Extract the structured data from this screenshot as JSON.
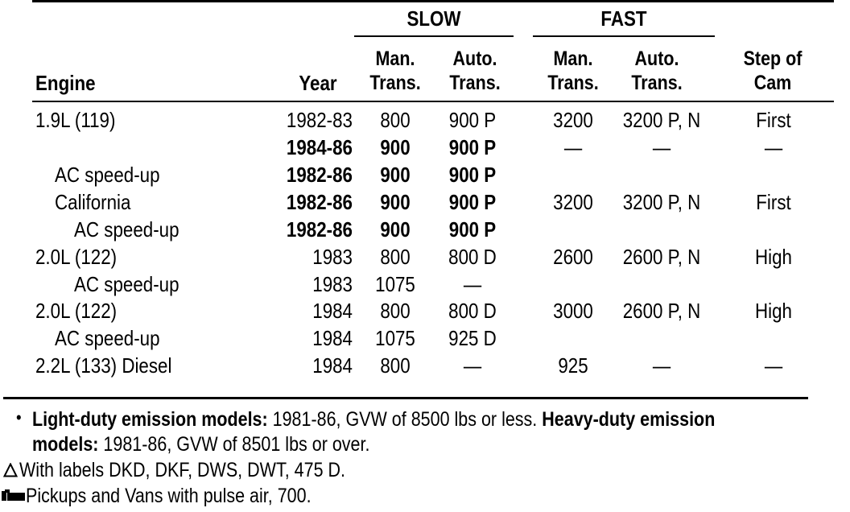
{
  "table": {
    "group_headers": {
      "slow": "SLOW",
      "fast": "FAST"
    },
    "columns": {
      "engine": "Engine",
      "year": "Year",
      "slow_man_line1": "Man.",
      "slow_man_line2": "Trans.",
      "slow_auto_line1": "Auto.",
      "slow_auto_line2": "Trans.",
      "fast_man_line1": "Man.",
      "fast_man_line2": "Trans.",
      "fast_auto_line1": "Auto.",
      "fast_auto_line2": "Trans.",
      "step_line1": "Step of",
      "step_line2": "Cam"
    },
    "rows": [
      {
        "engine": "1.9L (119)",
        "year": "1982-83",
        "slow_man": "800",
        "slow_auto": "900 P",
        "fast_man": "3200",
        "fast_auto": "3200 P, N",
        "step": "First"
      },
      {
        "engine": "",
        "year": "1984-86",
        "slow_man": "900",
        "slow_auto": "900 P",
        "fast_man": "—",
        "fast_auto": "—",
        "step": "—"
      },
      {
        "engine": "AC speed-up",
        "year": "1982-86",
        "slow_man": "900",
        "slow_auto": "900 P",
        "fast_man": "",
        "fast_auto": "",
        "step": ""
      },
      {
        "engine": "California",
        "year": "1982-86",
        "slow_man": "900",
        "slow_auto": "900 P",
        "fast_man": "3200",
        "fast_auto": "3200 P, N",
        "step": "First"
      },
      {
        "engine": "AC speed-up",
        "year": "1982-86",
        "slow_man": "900",
        "slow_auto": "900 P",
        "fast_man": "",
        "fast_auto": "",
        "step": ""
      },
      {
        "engine": "2.0L (122)",
        "year": "1983",
        "slow_man": "800",
        "slow_auto": "800 D",
        "fast_man": "2600",
        "fast_auto": "2600 P, N",
        "step": "High"
      },
      {
        "engine": "AC speed-up",
        "year": "1983",
        "slow_man": "1075",
        "slow_auto": "—",
        "fast_man": "",
        "fast_auto": "",
        "step": ""
      },
      {
        "engine": "2.0L (122)",
        "year": "1984",
        "slow_man": "800",
        "slow_auto": "800 D",
        "fast_man": "3000",
        "fast_auto": "2600 P, N",
        "step": "High"
      },
      {
        "engine": "AC speed-up",
        "year": "1984",
        "slow_man": "1075",
        "slow_auto": "925 D",
        "fast_man": "",
        "fast_auto": "",
        "step": ""
      },
      {
        "engine": "2.2L (133) Diesel",
        "year": "1984",
        "slow_man": "800",
        "slow_auto": "—",
        "fast_man": "925",
        "fast_auto": "—",
        "step": "—"
      }
    ]
  },
  "footnotes": {
    "bullet": "•",
    "light_bold": "Light-duty emission models:",
    "light_text": " 1981-86, GVW of 8500 lbs or less.",
    "heavy_bold_a": " Heavy-duty emission",
    "heavy_bold_b": "models:",
    "heavy_text": " 1981-86, GVW of 8501 lbs or over.",
    "triangle": "Δ",
    "triangle_text": "With labels DKD, DKF, DWS, DWT, 475 D.",
    "pickup_text": "Pickups and Vans with pulse air, 700."
  }
}
